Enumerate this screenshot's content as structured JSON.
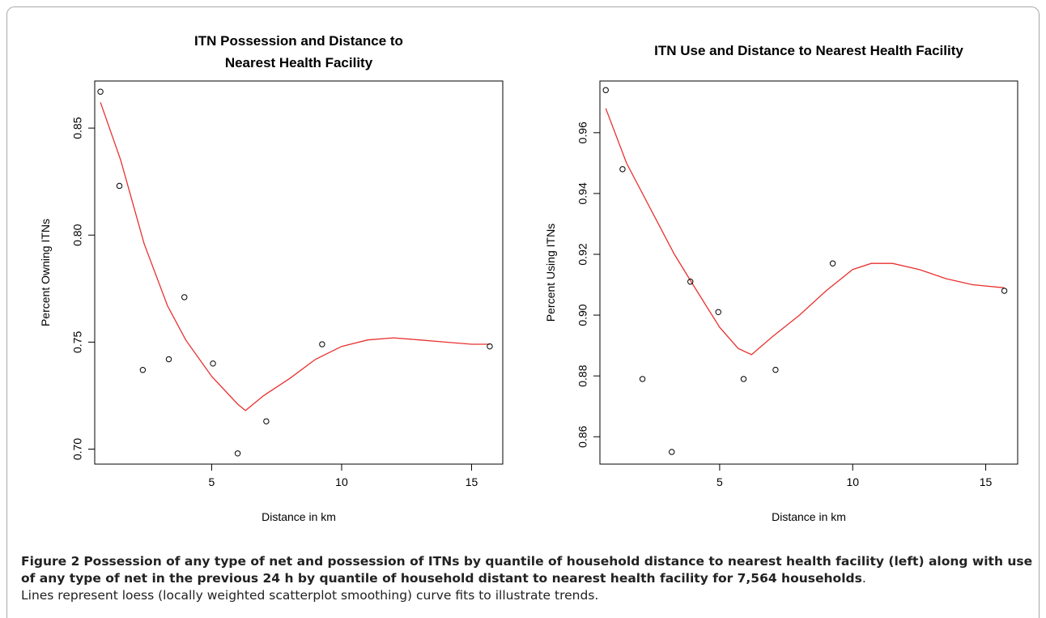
{
  "chart_data": [
    {
      "type": "scatter",
      "title": "ITN Possession and Distance to\nNearest Health Facility",
      "xlabel": "Distance in km",
      "ylabel": "Percent Owning ITNs",
      "xlim": [
        0.5,
        16.2
      ],
      "ylim": [
        0.693,
        0.872
      ],
      "xticks": [
        5,
        10,
        15
      ],
      "yticks": [
        0.7,
        0.75,
        0.8,
        0.85
      ],
      "ytick_labels": [
        "0.70",
        "0.75",
        "0.80",
        "0.85"
      ],
      "grid": false,
      "points": {
        "x": [
          0.72,
          1.45,
          2.35,
          3.35,
          3.95,
          5.05,
          6.0,
          7.1,
          9.25,
          15.7
        ],
        "y": [
          0.867,
          0.823,
          0.737,
          0.742,
          0.771,
          0.74,
          0.698,
          0.713,
          0.749,
          0.748
        ]
      },
      "smooth": {
        "name": "loess",
        "color": "#e8312f",
        "x": [
          0.72,
          1.5,
          2.4,
          3.3,
          4.0,
          5.0,
          6.0,
          6.3,
          7.0,
          8.0,
          9.0,
          10.0,
          11.0,
          12.0,
          13.0,
          14.0,
          15.0,
          15.7
        ],
        "y": [
          0.862,
          0.835,
          0.796,
          0.767,
          0.751,
          0.734,
          0.721,
          0.718,
          0.725,
          0.733,
          0.742,
          0.748,
          0.751,
          0.752,
          0.751,
          0.75,
          0.749,
          0.749
        ]
      }
    },
    {
      "type": "scatter",
      "title": "ITN Use and Distance to Nearest Health Facility",
      "xlabel": "Distance in km",
      "ylabel": "Percent Using ITNs",
      "xlim": [
        0.5,
        16.2
      ],
      "ylim": [
        0.851,
        0.977
      ],
      "xticks": [
        5,
        10,
        15
      ],
      "yticks": [
        0.86,
        0.88,
        0.9,
        0.92,
        0.94,
        0.96
      ],
      "ytick_labels": [
        "0.86",
        "0.88",
        "0.90",
        "0.92",
        "0.94",
        "0.96"
      ],
      "grid": false,
      "points": {
        "x": [
          0.72,
          1.35,
          2.1,
          3.2,
          3.9,
          4.95,
          5.9,
          7.1,
          9.25,
          15.7
        ],
        "y": [
          0.974,
          0.948,
          0.879,
          0.855,
          0.911,
          0.901,
          0.879,
          0.882,
          0.917,
          0.908
        ]
      },
      "smooth": {
        "name": "loess",
        "color": "#e8312f",
        "x": [
          0.72,
          1.5,
          2.4,
          3.3,
          4.0,
          5.0,
          5.7,
          6.2,
          7.0,
          8.0,
          9.0,
          10.0,
          10.7,
          11.5,
          12.5,
          13.5,
          14.5,
          15.7
        ],
        "y": [
          0.968,
          0.95,
          0.935,
          0.92,
          0.91,
          0.896,
          0.889,
          0.887,
          0.893,
          0.9,
          0.908,
          0.915,
          0.917,
          0.917,
          0.915,
          0.912,
          0.91,
          0.909
        ]
      }
    }
  ],
  "caption": {
    "label": "Figure 2",
    "bold_text": "Possession of any type of net and possession of ITNs by quantile of household distance to nearest health facility (left) along with use of any type of net in the previous 24 h by quantile of household distant to nearest health facility for 7,564 households",
    "bold_end": ".",
    "note": "Lines represent loess (locally weighted scatterplot smoothing) curve fits to illustrate trends."
  }
}
